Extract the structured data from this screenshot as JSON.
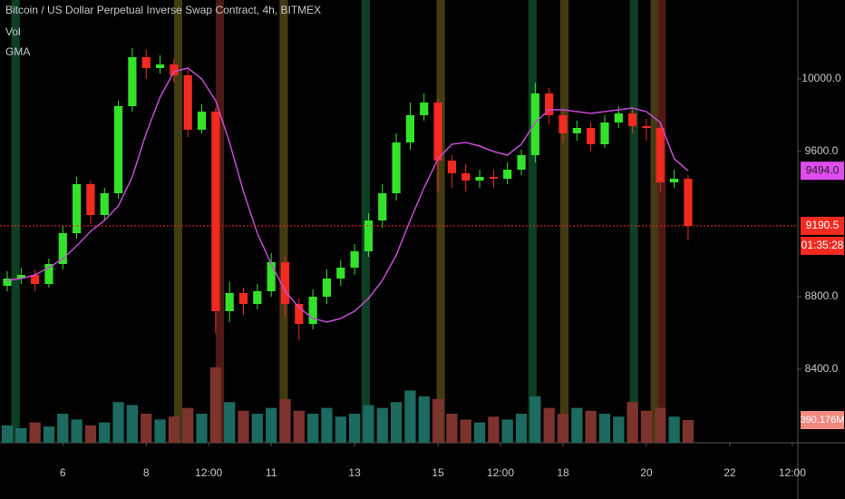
{
  "chart_data": {
    "type": "candlestick",
    "title": "Bitcoin / US Dollar Perpetual Inverse Swap Contract, 4h, BITMEX",
    "indicator_labels": [
      "Vol",
      "GMA"
    ],
    "open": [
      8860,
      8900,
      8920,
      8870,
      8980,
      9150,
      9420,
      9250,
      9370,
      9850,
      10120,
      10060,
      10080,
      10020,
      9720,
      9820,
      8720,
      8820,
      8760,
      8830,
      8990,
      8760,
      8650,
      8800,
      8900,
      8960,
      9050,
      9220,
      9370,
      9650,
      9800,
      9870,
      9550,
      9480,
      9440,
      9460,
      9450,
      9500,
      9580,
      9920,
      9800,
      9700,
      9730,
      9640,
      9760,
      9810,
      9740,
      9730,
      9430,
      9450
    ],
    "high": [
      8940,
      8960,
      8950,
      9010,
      9190,
      9460,
      9440,
      9400,
      9880,
      10170,
      10160,
      10130,
      10110,
      10050,
      9860,
      9840,
      8880,
      8850,
      8870,
      9040,
      9020,
      8790,
      8840,
      8950,
      9000,
      9090,
      9260,
      9420,
      9700,
      9870,
      9920,
      9890,
      9580,
      9530,
      9500,
      9500,
      9540,
      9610,
      9980,
      9950,
      9830,
      9770,
      9760,
      9800,
      9850,
      9840,
      9780,
      9760,
      9500,
      9470
    ],
    "low": [
      8830,
      8870,
      8830,
      8850,
      8950,
      9120,
      9200,
      9220,
      9340,
      9820,
      10000,
      10030,
      9980,
      9680,
      9700,
      8600,
      8660,
      8700,
      8730,
      8800,
      8690,
      8560,
      8620,
      8760,
      8860,
      8920,
      9020,
      9180,
      9330,
      9610,
      9770,
      9380,
      9400,
      9380,
      9400,
      9400,
      9420,
      9470,
      9540,
      9750,
      9650,
      9660,
      9600,
      9620,
      9730,
      9700,
      9660,
      9380,
      9400,
      9110
    ],
    "close": [
      8900,
      8920,
      8870,
      8980,
      9150,
      9420,
      9250,
      9370,
      9850,
      10120,
      10060,
      10080,
      10020,
      9720,
      9820,
      8720,
      8820,
      8760,
      8830,
      8990,
      8760,
      8650,
      8800,
      8900,
      8960,
      9050,
      9220,
      9370,
      9650,
      9800,
      9870,
      9550,
      9480,
      9440,
      9460,
      9450,
      9500,
      9580,
      9920,
      9800,
      9700,
      9730,
      9640,
      9760,
      9810,
      9740,
      9730,
      9430,
      9450,
      9190
    ],
    "volume": [
      300,
      250,
      350,
      280,
      500,
      400,
      300,
      350,
      700,
      650,
      500,
      400,
      450,
      600,
      500,
      1300,
      700,
      550,
      500,
      600,
      750,
      550,
      500,
      600,
      450,
      500,
      650,
      600,
      700,
      900,
      800,
      750,
      500,
      400,
      350,
      450,
      400,
      500,
      800,
      600,
      500,
      600,
      550,
      500,
      450,
      700,
      550,
      600,
      450,
      390.176
    ],
    "gma": [
      8890,
      8900,
      8920,
      8960,
      9010,
      9080,
      9160,
      9220,
      9300,
      9460,
      9700,
      9900,
      10040,
      10060,
      10000,
      9880,
      9650,
      9380,
      9150,
      8980,
      8830,
      8740,
      8680,
      8660,
      8680,
      8720,
      8790,
      8890,
      9030,
      9220,
      9400,
      9560,
      9640,
      9650,
      9630,
      9600,
      9580,
      9640,
      9760,
      9830,
      9830,
      9820,
      9810,
      9820,
      9830,
      9840,
      9820,
      9760,
      9560,
      9494
    ],
    "up_color": "#35e22b",
    "down_color": "#f22a1f",
    "volume_up_color": "#1c6a60",
    "volume_down_color": "#7d332d",
    "gma_color": "#c54bd4",
    "bands": [
      {
        "index": 0.6,
        "color": "#0f4a2a"
      },
      {
        "index": 12.3,
        "color": "#4f4516"
      },
      {
        "index": 15.3,
        "color": "#5a1f1a"
      },
      {
        "index": 19.9,
        "color": "#4f4516"
      },
      {
        "index": 25.8,
        "color": "#0f4a2a"
      },
      {
        "index": 31.2,
        "color": "#4f4516"
      },
      {
        "index": 37.8,
        "color": "#0f4a2a"
      },
      {
        "index": 40.1,
        "color": "#4f4516"
      },
      {
        "index": 45.1,
        "color": "#0f4a2a"
      },
      {
        "index": 46.6,
        "color": "#4f4516"
      },
      {
        "index": 47.1,
        "color": "#5a1f1a"
      }
    ],
    "xlim": [
      -0.52,
      56.9
    ],
    "xticks": [
      {
        "value": 4,
        "label": "6"
      },
      {
        "value": 10,
        "label": "8"
      },
      {
        "value": 14.5,
        "label": "12:00"
      },
      {
        "value": 19,
        "label": "11"
      },
      {
        "value": 25,
        "label": "13"
      },
      {
        "value": 31,
        "label": "15"
      },
      {
        "value": 35.5,
        "label": "12:00"
      },
      {
        "value": 40,
        "label": "18"
      },
      {
        "value": 46,
        "label": "20"
      },
      {
        "value": 52,
        "label": "22"
      },
      {
        "value": 56.5,
        "label": "12:00"
      }
    ],
    "ylim": [
      7995,
      10435
    ],
    "yticks": [
      {
        "value": 8400,
        "label": "8400.0"
      },
      {
        "value": 8800,
        "label": "8800.0"
      },
      {
        "value": 9600,
        "label": "9600.0"
      },
      {
        "value": 10000,
        "label": "10000.0"
      }
    ],
    "vlim": [
      0,
      1500
    ],
    "last_price": 9190.5,
    "countdown": "01:35:28",
    "gma_tag": {
      "value": 9494,
      "label": "9494.0"
    },
    "volume_tag": {
      "value": 390.176,
      "label": "390.176M"
    }
  }
}
